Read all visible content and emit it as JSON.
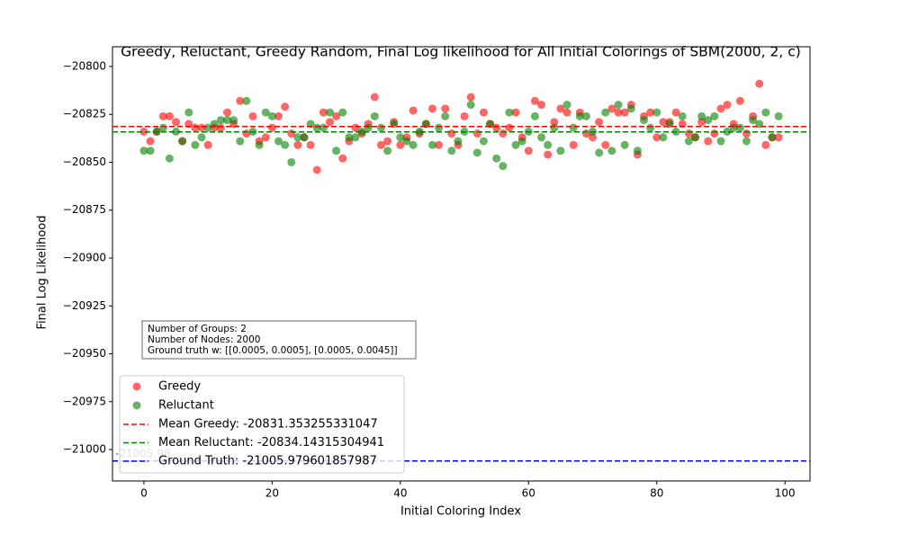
{
  "chart_data": {
    "type": "scatter",
    "title": "Greedy, Reluctant, Greedy Random, Final Log likelihood for All Initial Colorings of SBM(2000, 2, c)",
    "xlabel": "Initial Coloring Index",
    "ylabel": "Final Log Likelihood",
    "xlim": [
      -4.9,
      103.9
    ],
    "ylim": [
      -21016.4,
      -20789.7
    ],
    "xticks": [
      0,
      20,
      40,
      60,
      80,
      100
    ],
    "yticks": [
      {
        "value": -20800,
        "label": "−20800"
      },
      {
        "value": -20825,
        "label": "−20825"
      },
      {
        "value": -20850,
        "label": "−20850"
      },
      {
        "value": -20875,
        "label": "−20875"
      },
      {
        "value": -20900,
        "label": "−20900"
      },
      {
        "value": -20925,
        "label": "−20925"
      },
      {
        "value": -20950,
        "label": "−20950"
      },
      {
        "value": -20975,
        "label": "−20975"
      },
      {
        "value": -21000,
        "label": "−21000"
      }
    ],
    "series": [
      {
        "name": "Greedy",
        "color": "#ff0000",
        "values": [
          -20834,
          -20839,
          -20834,
          -20826,
          -20826,
          -20829,
          -20839,
          -20830,
          -20832,
          -20832,
          -20841,
          -20832,
          -20832,
          -20824,
          -20830,
          -20818,
          -20835,
          -20826,
          -20839,
          -20837,
          -20832,
          -20826,
          -20821,
          -20835,
          -20841,
          -20837,
          -20841,
          -20854,
          -20824,
          -20829,
          -20826,
          -20848,
          -20839,
          -20832,
          -20835,
          -20830,
          -20816,
          -20841,
          -20839,
          -20829,
          -20841,
          -20837,
          -20823,
          -20835,
          -20830,
          -20822,
          -20841,
          -20822,
          -20835,
          -20841,
          -20826,
          -20816,
          -20835,
          -20824,
          -20830,
          -20832,
          -20835,
          -20832,
          -20824,
          -20837,
          -20844,
          -20818,
          -20820,
          -20846,
          -20829,
          -20822,
          -20824,
          -20841,
          -20824,
          -20835,
          -20837,
          -20829,
          -20841,
          -20822,
          -20824,
          -20824,
          -20820,
          -20846,
          -20826,
          -20824,
          -20837,
          -20829,
          -20829,
          -20824,
          -20830,
          -20835,
          -20837,
          -20829,
          -20839,
          -20835,
          -20822,
          -20820,
          -20830,
          -20818,
          -20835,
          -20826,
          -20809,
          -20841,
          -20837,
          -20837
        ]
      },
      {
        "name": "Reluctant",
        "color": "#008000",
        "values": [
          -20844,
          -20844,
          -20834,
          -20832,
          -20848,
          -20834,
          -20839,
          -20824,
          -20841,
          -20837,
          -20832,
          -20830,
          -20828,
          -20828,
          -20828,
          -20839,
          -20818,
          -20834,
          -20841,
          -20824,
          -20826,
          -20839,
          -20841,
          -20850,
          -20837,
          -20837,
          -20830,
          -20832,
          -20832,
          -20824,
          -20844,
          -20824,
          -20837,
          -20837,
          -20834,
          -20832,
          -20826,
          -20832,
          -20844,
          -20830,
          -20837,
          -20839,
          -20841,
          -20834,
          -20830,
          -20841,
          -20832,
          -20826,
          -20844,
          -20839,
          -20834,
          -20820,
          -20845,
          -20839,
          -20830,
          -20848,
          -20852,
          -20824,
          -20841,
          -20839,
          -20834,
          -20826,
          -20837,
          -20841,
          -20832,
          -20844,
          -20820,
          -20832,
          -20826,
          -20826,
          -20834,
          -20845,
          -20824,
          -20844,
          -20820,
          -20841,
          -20822,
          -20844,
          -20828,
          -20832,
          -20824,
          -20837,
          -20830,
          -20834,
          -20826,
          -20839,
          -20837,
          -20826,
          -20828,
          -20826,
          -20839,
          -20834,
          -20832,
          -20832,
          -20839,
          -20828,
          -20830,
          -20824,
          -20837,
          -20826
        ]
      }
    ],
    "hlines": [
      {
        "name": "Mean Greedy: -20831.353255331047",
        "value": -20831.353255331047,
        "color": "#ff0000"
      },
      {
        "name": "Mean Reluctant: -20834.14315304941",
        "value": -20834.14315304941,
        "color": "#008000"
      },
      {
        "name": "Ground Truth: -21005.979601857987",
        "value": -21005.979601857987,
        "color": "#0000ff"
      }
    ],
    "annotation": "-21005.98",
    "info_box": [
      "Number of Groups: 2",
      "Number of Nodes: 2000",
      "Ground truth w: [[0.0005, 0.0005], [0.0005, 0.0045]]"
    ],
    "legend": "lower left"
  }
}
